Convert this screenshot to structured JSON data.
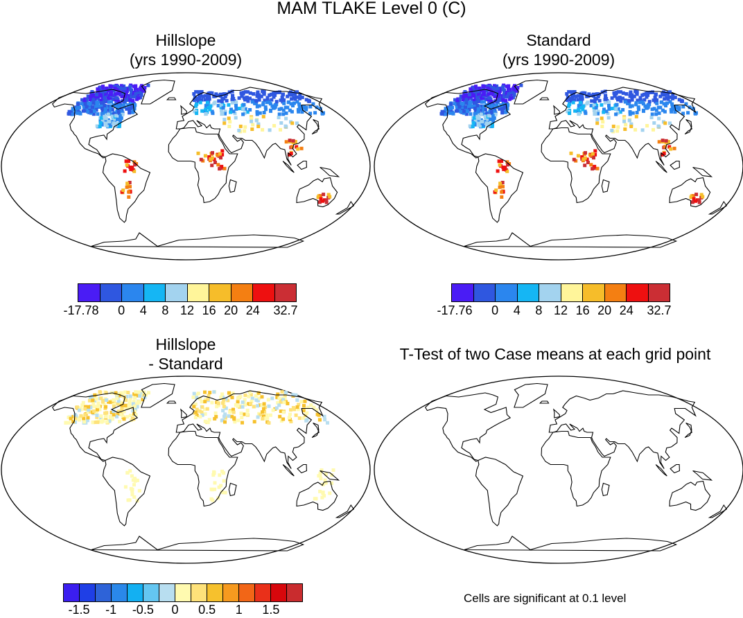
{
  "title": "MAM TLAKE Level 0 (C)",
  "panels": {
    "top_left": {
      "title_line1": "Hillslope",
      "title_line2": "(yrs 1990-2009)"
    },
    "top_right": {
      "title_line1": "Standard",
      "title_line2": "(yrs 1990-2009)"
    },
    "bottom_left": {
      "title_line1": "Hillslope",
      "title_line2": "- Standard"
    },
    "bottom_right": {
      "title_line1": "T-Test of two Case means at each grid point"
    }
  },
  "colorbars": {
    "top_left": {
      "colors": [
        "#4a1cf5",
        "#2f57e0",
        "#2b86ee",
        "#15b6f4",
        "#a3d3ef",
        "#fff59a",
        "#f6bd2a",
        "#f47f12",
        "#ee1010",
        "#cb2e34"
      ],
      "tick_labels": [
        "-17.78",
        "0",
        "4",
        "8",
        "12",
        "16",
        "20",
        "24",
        "32.7"
      ]
    },
    "top_right": {
      "colors": [
        "#4a1cf5",
        "#2f57e0",
        "#2b86ee",
        "#15b6f4",
        "#a3d3ef",
        "#fff59a",
        "#f6bd2a",
        "#f47f12",
        "#ee1010",
        "#cb2e34"
      ],
      "tick_labels": [
        "-17.76",
        "0",
        "4",
        "8",
        "12",
        "16",
        "20",
        "24",
        "32.7"
      ]
    },
    "bottom": {
      "colors": [
        "#3b1ef0",
        "#1f3fe6",
        "#2e63d8",
        "#2a88ea",
        "#13b0f2",
        "#64c6f1",
        "#b8def0",
        "#fffab0",
        "#fee27a",
        "#f6c12d",
        "#f69a1f",
        "#f26617",
        "#e9301a",
        "#d8070c",
        "#c92c2e"
      ],
      "tick_labels": [
        "-1.5",
        "-1",
        "-0.5",
        "0",
        "0.5",
        "1",
        "1.5"
      ]
    }
  },
  "note": "Cells are significant at 0.1 level"
}
